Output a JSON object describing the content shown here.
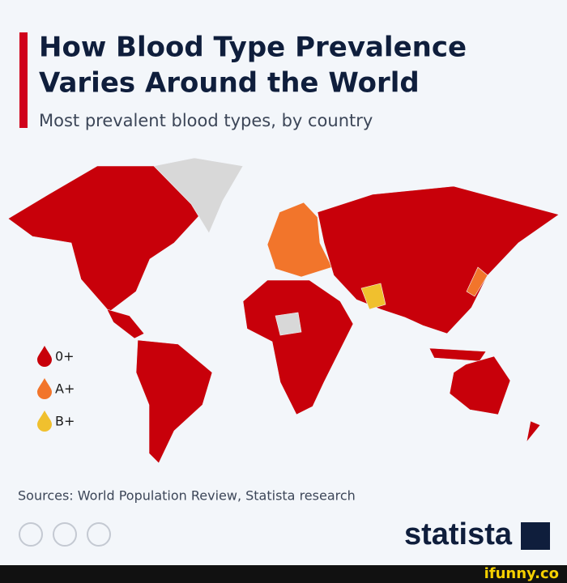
{
  "header": {
    "title_lines": [
      "How Blood Type Prevalence",
      "Varies Around the World"
    ],
    "subtitle": "Most prevalent blood types, by country"
  },
  "legend": [
    {
      "label": "0+",
      "color": "#c8000a"
    },
    {
      "label": "A+",
      "color": "#f2752b"
    },
    {
      "label": "B+",
      "color": "#f0c02e"
    }
  ],
  "footer": {
    "sources": "Sources: World Population Review, Statista research",
    "brand": "statista"
  },
  "watermark": "ifunny.co"
}
